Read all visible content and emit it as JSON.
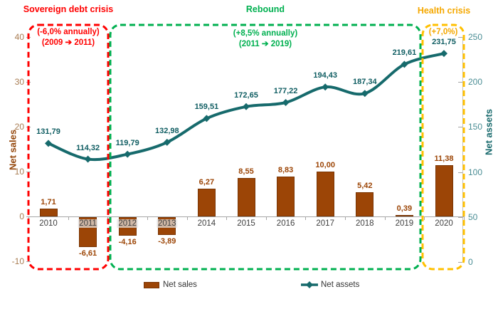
{
  "chart_data": {
    "type": "bar+line combo",
    "categories": [
      "2010",
      "2011",
      "2012",
      "2013",
      "2014",
      "2015",
      "2016",
      "2017",
      "2018",
      "2019",
      "2020"
    ],
    "series": [
      {
        "name": "Net sales",
        "type": "bar",
        "axis": "left",
        "values": [
          1.71,
          -6.61,
          -4.16,
          -3.89,
          6.27,
          8.55,
          8.83,
          10.0,
          5.42,
          0.39,
          11.38
        ],
        "labels": [
          "1,71",
          "-6,61",
          "-4,16",
          "-3,89",
          "6,27",
          "8,55",
          "8,83",
          "10,00",
          "5,42",
          "0,39",
          "11,38"
        ],
        "color": "#9C4506"
      },
      {
        "name": "Net assets",
        "type": "line",
        "axis": "right",
        "values": [
          131.79,
          114.32,
          119.79,
          132.98,
          159.51,
          172.65,
          177.22,
          194.43,
          187.34,
          219.61,
          231.75
        ],
        "labels": [
          "131,79",
          "114,32",
          "119,79",
          "132,98",
          "159,51",
          "172,65",
          "177,22",
          "194,43",
          "187,34",
          "219,61",
          "231,75"
        ],
        "color": "#166A6C"
      }
    ],
    "left_axis": {
      "title": "Net sales",
      "min": -10,
      "max": 40,
      "step": 10,
      "tick_labels": [
        "40",
        "30",
        "20",
        "10",
        "0",
        "-10"
      ]
    },
    "right_axis": {
      "title": "Net assets",
      "min": 0,
      "max": 250,
      "step": 50,
      "tick_labels": [
        "250",
        "200",
        "150",
        "100",
        "50",
        "0"
      ]
    },
    "legend_position": "bottom",
    "grid": false
  },
  "annotations": {
    "periods": [
      {
        "title": "Sovereign debt crisis",
        "line1": "(-6,0% annually)",
        "line2": "(2009 ➔ 2011)",
        "color": "#FF0000",
        "text_color": "#FF0000"
      },
      {
        "title": "Rebound",
        "line1": "(+8,5% annually)",
        "line2": "(2011 ➔ 2019)",
        "color": "#00B050",
        "text_color": "#00B050"
      },
      {
        "title": "Health crisis",
        "line1": "(+7,0%)",
        "line2": "",
        "color": "#FFC000",
        "text_color": "#F5A800"
      }
    ]
  },
  "legend": {
    "items": [
      {
        "label": "Net sales"
      },
      {
        "label": "Net assets"
      }
    ]
  },
  "colors": {
    "bar_fill": "#9C4506",
    "bar_border": "#7A3504",
    "line": "#166A6C",
    "left_ticks": "#A87C52",
    "right_ticks": "#4A8D94",
    "axis": "#A6A6A6"
  }
}
